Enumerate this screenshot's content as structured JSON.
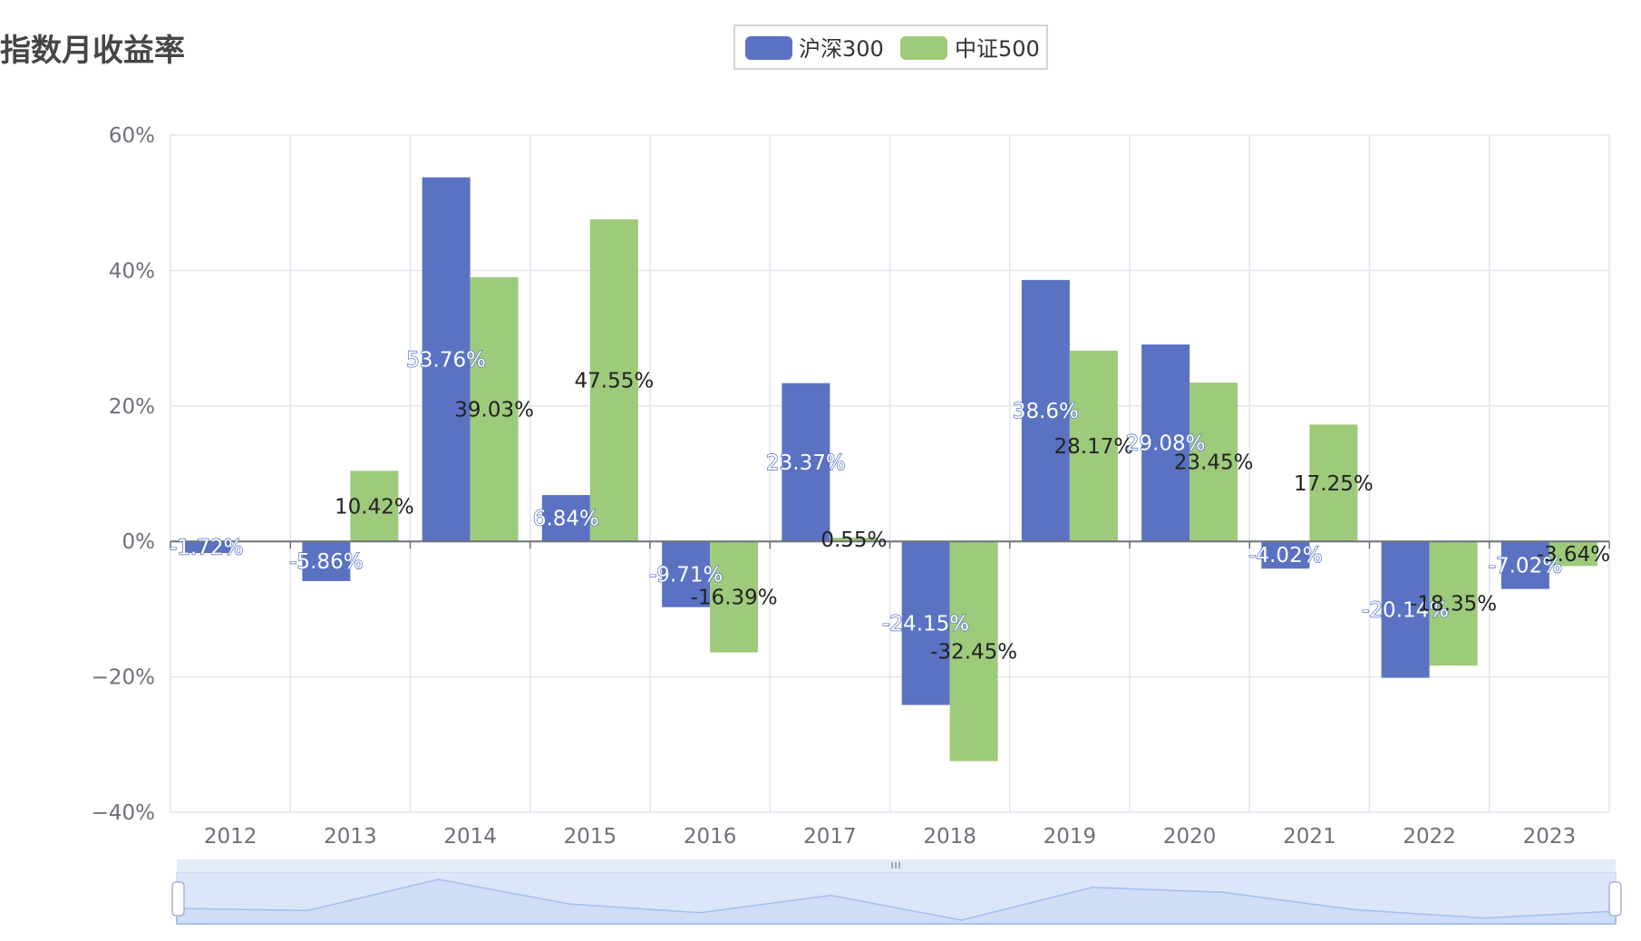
{
  "title": "指数月收益率",
  "legend": [
    {
      "name": "沪深300",
      "color": "#5b72c3"
    },
    {
      "name": "中证500",
      "color": "#9eca7b"
    }
  ],
  "chart_data": {
    "type": "bar",
    "title": "指数月收益率",
    "categories": [
      "2012",
      "2013",
      "2014",
      "2015",
      "2016",
      "2017",
      "2018",
      "2019",
      "2020",
      "2021",
      "2022",
      "2023"
    ],
    "series": [
      {
        "name": "沪深300",
        "color": "#5b72c3",
        "values": [
          -1.72,
          -5.86,
          53.76,
          6.84,
          -9.71,
          23.37,
          -24.15,
          38.6,
          29.08,
          -4.02,
          -20.14,
          -7.02
        ],
        "labels": [
          "-1.72%",
          "-5.86%",
          "53.76%",
          "6.84%",
          "-9.71%",
          "23.37%",
          "-24.15%",
          "38.6%",
          "29.08%",
          "-4.02%",
          "-20.14%",
          "-7.02%"
        ]
      },
      {
        "name": "中证500",
        "color": "#9eca7b",
        "values": [
          null,
          10.42,
          39.03,
          47.55,
          -16.39,
          0.55,
          -32.45,
          28.17,
          23.45,
          17.25,
          -18.35,
          -3.64
        ],
        "labels": [
          "",
          "10.42%",
          "39.03%",
          "47.55%",
          "-16.39%",
          "0.55%",
          "-32.45%",
          "28.17%",
          "23.45%",
          "17.25%",
          "-18.35%",
          "-3.64%"
        ]
      }
    ],
    "yticks": [
      "60%",
      "40%",
      "20%",
      "0%",
      "−20%",
      "−40%"
    ],
    "ytick_values": [
      60,
      40,
      20,
      0,
      -20,
      -40
    ],
    "ylim": [
      -40,
      60
    ],
    "grid": true,
    "legend_position": "top-center",
    "datazoom": {
      "range_start": 0,
      "range_end": 100,
      "preview_series": "沪深300"
    }
  }
}
